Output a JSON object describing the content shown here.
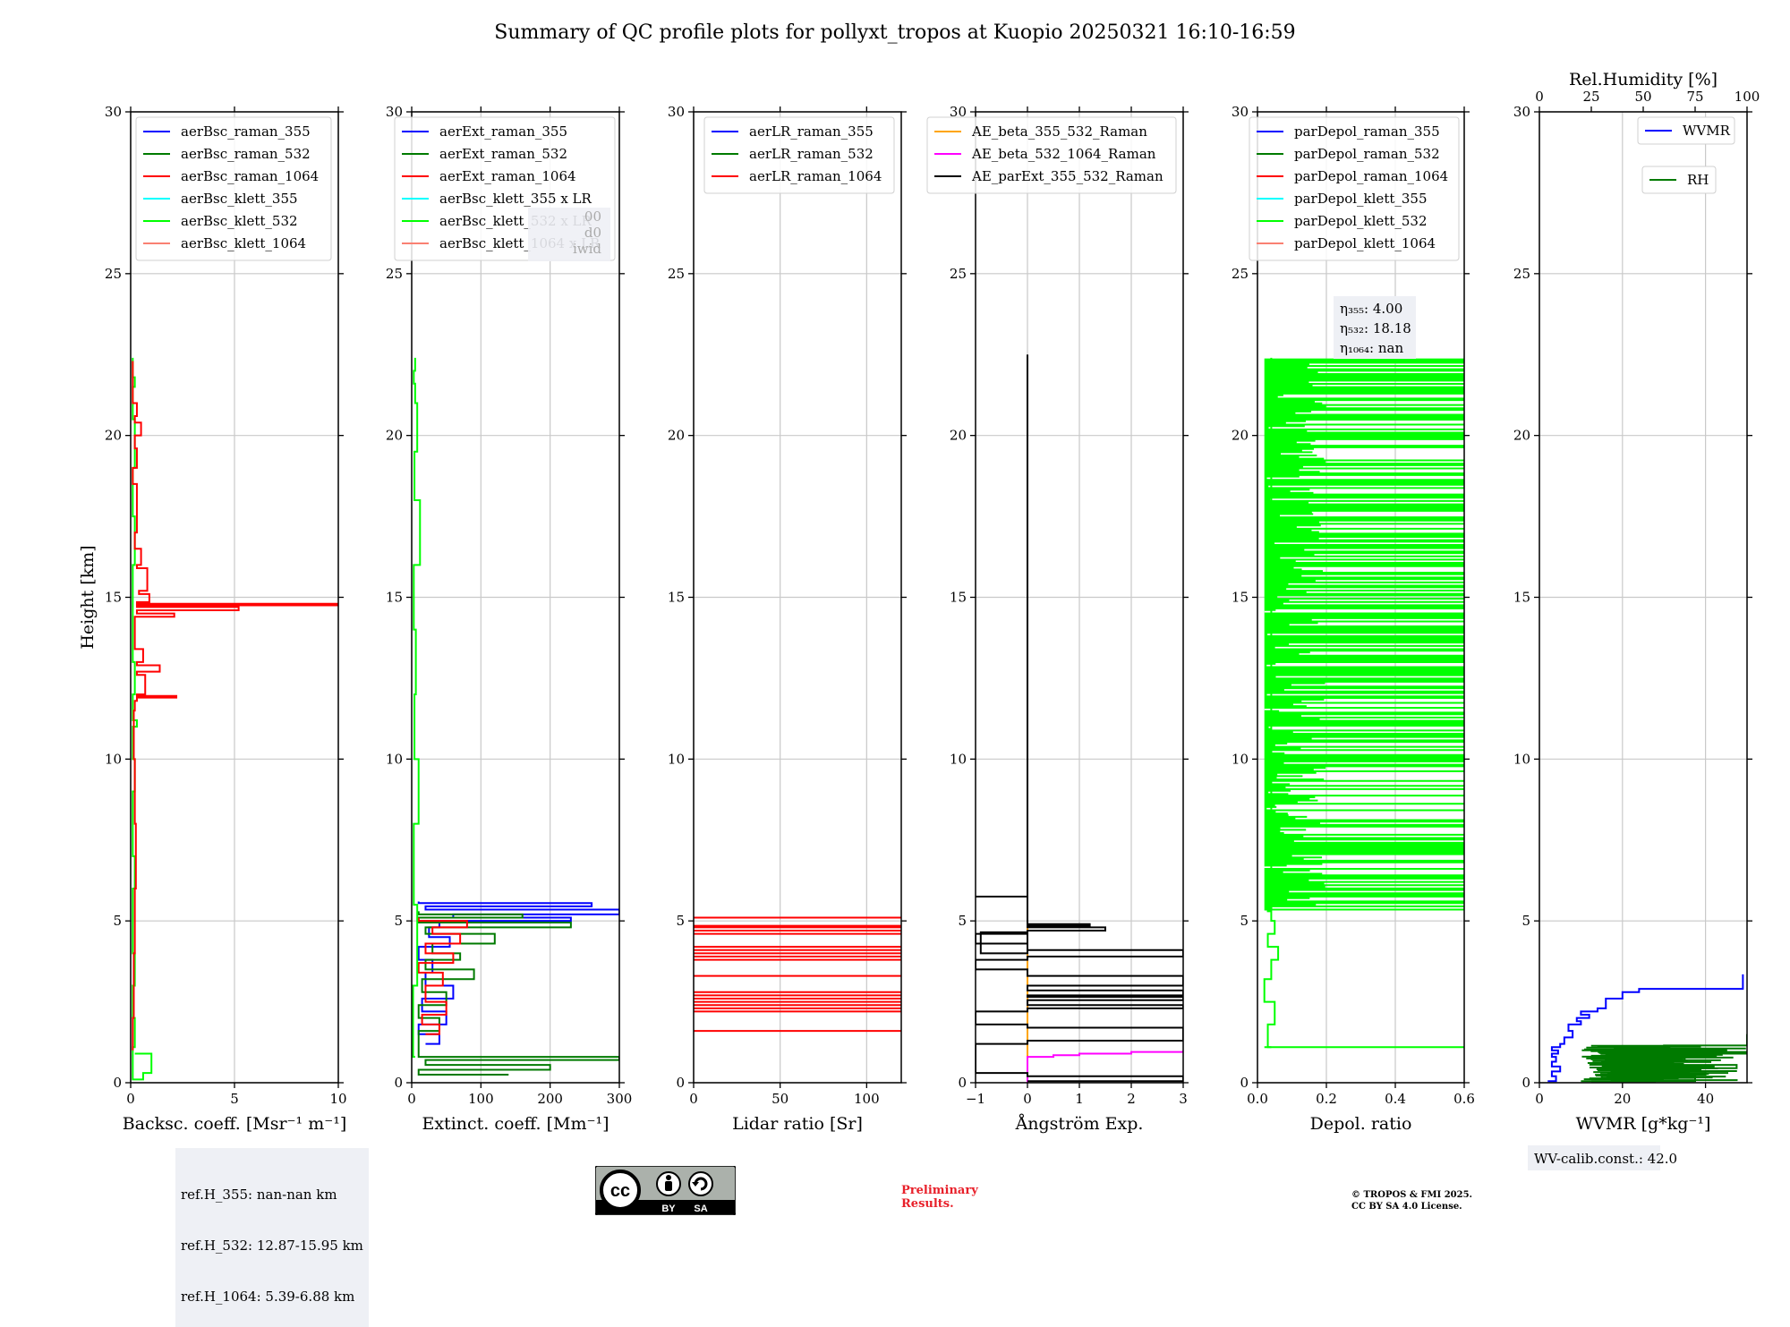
{
  "title": "Summary of QC profile plots for pollyxt_tropos at Kuopio 20250321 16:10-16:59",
  "preliminary_note": [
    "Preliminary",
    "Results."
  ],
  "copyright_note": [
    "© TROPOS & FMI 2025.",
    "CC BY SA 4.0 License."
  ],
  "license_badge": {
    "cc": "cc",
    "by": "BY",
    "sa": "SA"
  },
  "colors": {
    "blue": "#0000ff",
    "green": "#007a00",
    "red": "#ff0000",
    "cyan": "#00ffff",
    "lime": "#00ff00",
    "salmon": "#fa8072",
    "orange": "#ffa500",
    "magenta": "#ff00ff",
    "black": "#000000"
  },
  "chart_data": [
    {
      "id": "backscatter",
      "type": "line",
      "ylabel": "Height [km]",
      "xlabel": "Backsc. coeff. [Msr⁻¹ m⁻¹]",
      "xlim": [
        0,
        10
      ],
      "ylim": [
        0,
        30
      ],
      "xticks": [
        0,
        5,
        10
      ],
      "yticks": [
        0,
        5,
        10,
        15,
        20,
        25,
        30
      ],
      "legend": [
        "aerBsc_raman_355",
        "aerBsc_raman_532",
        "aerBsc_raman_1064",
        "aerBsc_klett_355",
        "aerBsc_klett_532",
        "aerBsc_klett_1064"
      ],
      "legend_colors": [
        "#0000ff",
        "#007a00",
        "#ff0000",
        "#00ffff",
        "#00ff00",
        "#fa8072"
      ],
      "series": [
        {
          "name": "aerBsc_klett_532",
          "color": "#00ff00",
          "x": [
            0.2,
            0.8,
            1.0,
            0.6,
            0.1,
            0.2,
            0.1,
            0.2,
            0.1,
            0.1,
            0.2,
            0.1,
            0.1,
            0.2,
            0.1,
            0.3,
            0.1,
            0.2,
            0.1,
            0.1,
            0.2,
            0.1,
            0.2,
            0.1,
            0.2,
            0.1
          ],
          "y": [
            0.9,
            0.9,
            0.3,
            0.1,
            1.1,
            2.0,
            3.0,
            4.0,
            5.0,
            6.0,
            7.0,
            8.0,
            9.0,
            10.0,
            11.0,
            11.2,
            12.0,
            13.0,
            14.0,
            16.0,
            17.5,
            19.0,
            20.5,
            21.5,
            21.8,
            22.4
          ]
        },
        {
          "name": "aerBsc_klett_1064",
          "color": "#ff0000",
          "x": [
            0.1,
            0.1,
            0.15,
            0.2,
            0.25,
            0.2,
            0.15,
            0.2,
            0.3,
            2.2,
            0.3,
            0.7,
            0.3,
            1.4,
            0.3,
            0.6,
            0.2,
            2.1,
            0.3,
            5.2,
            0.3,
            10.0,
            0.3,
            0.9,
            0.4,
            0.8,
            0.3,
            0.5,
            0.2,
            0.3,
            0.1,
            0.3,
            0.2,
            0.5,
            0.2,
            0.3,
            0.1
          ],
          "y": [
            1.0,
            2.0,
            4.0,
            6.0,
            8.0,
            10.0,
            11.5,
            11.8,
            11.9,
            11.95,
            12.0,
            12.6,
            12.7,
            12.9,
            13.0,
            13.4,
            14.4,
            14.5,
            14.6,
            14.7,
            14.75,
            14.8,
            14.85,
            15.1,
            15.2,
            15.9,
            16.0,
            16.5,
            17.0,
            18.5,
            19.0,
            19.6,
            20.0,
            20.4,
            20.6,
            21.0,
            22.3
          ]
        }
      ]
    },
    {
      "id": "extinction",
      "type": "line",
      "xlabel": "Extinct. coeff. [Mm⁻¹]",
      "xlim": [
        0,
        300
      ],
      "ylim": [
        0,
        30
      ],
      "xticks": [
        0,
        100,
        200,
        300
      ],
      "yticks": [
        0,
        5,
        10,
        15,
        20,
        25,
        30
      ],
      "legend": [
        "aerExt_raman_355",
        "aerExt_raman_532",
        "aerExt_raman_1064",
        "aerBsc_klett_355 x LR",
        "aerBsc_klett_532 x LR",
        "aerBsc_klett_1064 x LR"
      ],
      "legend_colors": [
        "#0000ff",
        "#007a00",
        "#ff0000",
        "#00ffff",
        "#00ff00",
        "#fa8072"
      ],
      "series": [
        {
          "name": "aerExt_raman_355",
          "color": "#0000ff",
          "x": [
            20,
            40,
            10,
            50,
            15,
            60,
            20,
            30,
            10,
            55,
            25,
            40,
            10,
            230,
            60,
            300,
            20,
            260,
            10
          ],
          "y": [
            1.2,
            1.5,
            1.8,
            2.2,
            2.6,
            3.0,
            3.4,
            3.8,
            4.2,
            4.5,
            4.8,
            4.95,
            5.0,
            5.1,
            5.2,
            5.35,
            5.45,
            5.55,
            5.6
          ]
        },
        {
          "name": "aerExt_raman_532",
          "color": "#007a00",
          "x": [
            140,
            10,
            200,
            20,
            300,
            10,
            40,
            10,
            50,
            15,
            90,
            20,
            70,
            30,
            120,
            20,
            230,
            10,
            160,
            10
          ],
          "y": [
            0.25,
            0.4,
            0.55,
            0.7,
            0.8,
            1.6,
            2.0,
            2.4,
            2.8,
            3.2,
            3.5,
            3.8,
            4.0,
            4.3,
            4.6,
            4.8,
            4.95,
            5.1,
            5.2,
            5.3
          ]
        },
        {
          "name": "aerExt_raman_1064",
          "color": "#ff0000",
          "x": [
            20,
            40,
            15,
            50,
            20,
            45,
            10,
            60,
            20,
            70,
            30,
            80,
            10
          ],
          "y": [
            1.5,
            1.8,
            2.1,
            2.5,
            3.0,
            3.4,
            3.7,
            4.0,
            4.3,
            4.6,
            4.8,
            5.0,
            5.1
          ]
        },
        {
          "name": "aerBsc_klett_532 x LR",
          "color": "#00ff00",
          "x": [
            5,
            2,
            8,
            3,
            10,
            4,
            6,
            3,
            12,
            4,
            8,
            5,
            3,
            5
          ],
          "y": [
            0.8,
            3.0,
            5.5,
            8.0,
            10.0,
            12.0,
            14.0,
            16.0,
            18.0,
            19.5,
            21.0,
            21.6,
            22.0,
            22.4
          ]
        }
      ],
      "overlaid_fragment": [
        "00",
        "d0",
        "iwid"
      ]
    },
    {
      "id": "lidar_ratio",
      "type": "line",
      "xlabel": "Lidar ratio [Sr]",
      "xlim": [
        0,
        120
      ],
      "ylim": [
        0,
        30
      ],
      "xticks": [
        0,
        50,
        100
      ],
      "yticks": [
        0,
        5,
        10,
        15,
        20,
        25,
        30
      ],
      "legend": [
        "aerLR_raman_355",
        "aerLR_raman_532",
        "aerLR_raman_1064"
      ],
      "legend_colors": [
        "#0000ff",
        "#007a00",
        "#ff0000"
      ],
      "series": [
        {
          "name": "aerLR_raman_1064",
          "color": "#ff0000",
          "y_levels": [
            1.6,
            2.2,
            2.3,
            2.4,
            2.5,
            2.6,
            2.7,
            2.8,
            3.3,
            3.8,
            3.9,
            4.0,
            4.1,
            4.2,
            4.6,
            4.7,
            4.8,
            4.85,
            5.1
          ]
        }
      ]
    },
    {
      "id": "angstrom",
      "type": "line",
      "xlabel": "Ångström Exp.",
      "xlim": [
        -1,
        3
      ],
      "ylim": [
        0,
        30
      ],
      "xticks": [
        -1,
        0,
        1,
        2,
        3
      ],
      "yticks": [
        0,
        5,
        10,
        15,
        20,
        25,
        30
      ],
      "legend": [
        "AE_beta_355_532_Raman",
        "AE_beta_532_1064_Raman",
        "AE_parExt_355_532_Raman"
      ],
      "legend_colors": [
        "#ffa500",
        "#ff00ff",
        "#000000"
      ],
      "series": [
        {
          "name": "AE_beta_355_532_Raman",
          "color": "#ffa500",
          "x": [
            0,
            0
          ],
          "y": [
            0.0,
            5.8
          ]
        },
        {
          "name": "AE_beta_532_1064_Raman",
          "color": "#ff00ff",
          "x": [
            0,
            0,
            0.5,
            1.0,
            2.0,
            3.0
          ],
          "y": [
            0.0,
            0.8,
            0.85,
            0.9,
            0.95,
            1.0
          ]
        },
        {
          "name": "AE_parExt_355_532_Raman",
          "color": "#000000",
          "x": [
            0,
            3,
            0,
            -1,
            0,
            3,
            0,
            -1,
            0,
            3,
            0,
            3,
            0,
            3,
            0,
            3,
            0,
            -1,
            0,
            3,
            0,
            -1,
            0,
            -0.9,
            0,
            1.5,
            0,
            1.2,
            0,
            -1,
            0,
            0
          ],
          "y": [
            0.05,
            0.2,
            0.3,
            1.2,
            1.3,
            1.7,
            1.8,
            2.2,
            2.3,
            2.4,
            2.55,
            2.65,
            2.7,
            2.85,
            3.0,
            3.3,
            3.5,
            3.8,
            3.9,
            4.1,
            4.3,
            4.6,
            4.65,
            4.0,
            4.7,
            4.8,
            4.85,
            4.9,
            5.75,
            5.75,
            5.8,
            22.5
          ]
        }
      ]
    },
    {
      "id": "depol",
      "type": "line",
      "xlabel": "Depol. ratio",
      "xlim": [
        0,
        0.6
      ],
      "ylim": [
        0,
        30
      ],
      "xticks": [
        0.0,
        0.2,
        0.4,
        0.6
      ],
      "xtick_labels": [
        "0.0",
        "0.2",
        "0.4",
        "0.6"
      ],
      "yticks": [
        0,
        5,
        10,
        15,
        20,
        25,
        30
      ],
      "legend": [
        "parDepol_raman_355",
        "parDepol_raman_532",
        "parDepol_raman_1064",
        "parDepol_klett_355",
        "parDepol_klett_532",
        "parDepol_klett_1064"
      ],
      "legend_colors": [
        "#0000ff",
        "#007a00",
        "#ff0000",
        "#00ffff",
        "#00ff00",
        "#fa8072"
      ],
      "eta_lines": [
        "η₃₅₅: 4.00",
        "η₅₃₂: 18.18",
        "η₁₀₆₄: nan"
      ],
      "series": [
        {
          "name": "parDepol_klett_532",
          "color": "#00ff00",
          "base_x": [
            0.04,
            0.03,
            0.05,
            0.02,
            0.04,
            0.06,
            0.03,
            0.05,
            0.04,
            0.03,
            0.04
          ],
          "base_y": [
            1.1,
            1.8,
            2.5,
            3.2,
            3.8,
            4.2,
            4.6,
            5.0,
            5.3,
            5.5,
            22.4
          ]
        }
      ]
    },
    {
      "id": "wvmr",
      "type": "line",
      "xlabel": "WVMR [g*kg⁻¹]",
      "top_xlabel": "Rel.Humidity [%]",
      "xlim": [
        0,
        50
      ],
      "top_xlim": [
        0,
        100
      ],
      "ylim": [
        0,
        30
      ],
      "xticks": [
        0,
        20,
        40
      ],
      "top_xticks": [
        0,
        25,
        50,
        75,
        100
      ],
      "yticks": [
        0,
        5,
        10,
        15,
        20,
        25,
        30
      ],
      "legend": [
        "WVMR",
        "RH"
      ],
      "legend_colors": [
        "#0000ff",
        "#007a00"
      ],
      "series": [
        {
          "name": "WVMR",
          "color": "#0000ff",
          "x": [
            2.0,
            4.0,
            3.0,
            5.0,
            3.0,
            4.0,
            3.0,
            4.5,
            3.0,
            5.0,
            6.0,
            8.0,
            7.0,
            10.0,
            9.0,
            12.0,
            10.0,
            14.0,
            16.0,
            20.0,
            24.0,
            49.0
          ],
          "y": [
            0.05,
            0.2,
            0.35,
            0.5,
            0.65,
            0.8,
            0.9,
            1.0,
            1.1,
            1.2,
            1.4,
            1.6,
            1.8,
            1.9,
            2.0,
            2.1,
            2.2,
            2.3,
            2.6,
            2.8,
            2.9,
            3.35
          ]
        },
        {
          "name": "RH",
          "color": "#007a00",
          "x_rh": [
            25,
            75,
            30,
            80,
            35,
            95,
            40,
            70,
            25,
            85,
            45,
            100,
            50,
            90,
            60,
            100
          ],
          "y": [
            0.05,
            0.15,
            0.25,
            0.35,
            0.45,
            0.55,
            0.65,
            0.75,
            0.8,
            0.85,
            0.9,
            0.95,
            1.0,
            1.05,
            1.15,
            1.5
          ]
        }
      ],
      "calibration_note": "WV-calib.const.: 42.0"
    }
  ],
  "ref_heights": [
    "ref.H_355: nan-nan km",
    "ref.H_532: 12.87-15.95 km",
    "ref.H_1064: 5.39-6.88 km"
  ]
}
